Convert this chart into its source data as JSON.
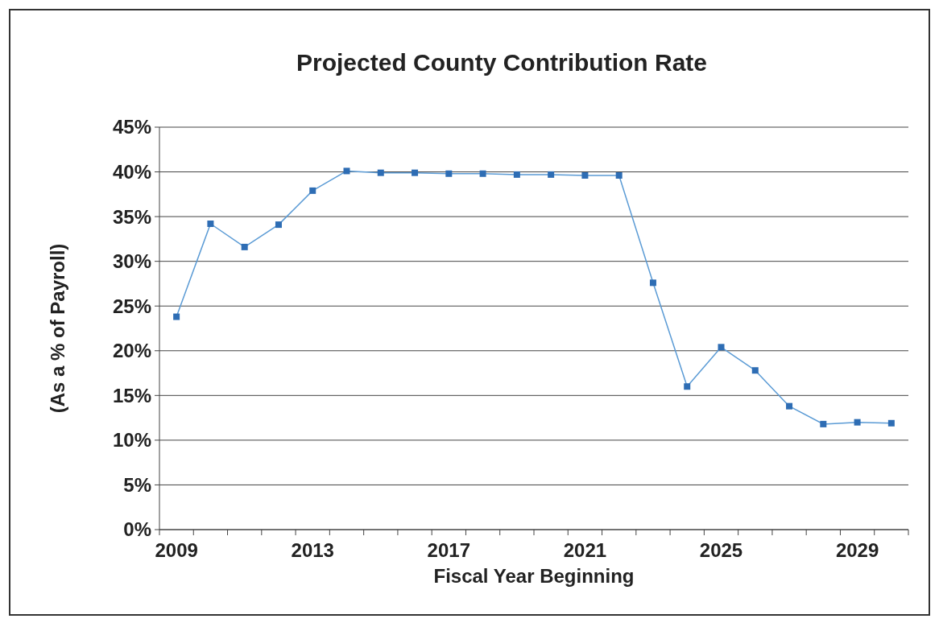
{
  "chart_data": {
    "type": "line",
    "title": "Projected County Contribution Rate",
    "xlabel": "Fiscal Year Beginning",
    "ylabel": "(As a % of Payroll)",
    "categories": [
      "2009",
      null,
      null,
      null,
      "2013",
      null,
      null,
      null,
      "2017",
      null,
      null,
      null,
      "2021",
      null,
      null,
      null,
      "2025",
      null,
      null,
      null,
      "2029",
      null
    ],
    "series": [
      {
        "color": "#2e6db4",
        "values": [
          23.8,
          34.2,
          31.6,
          34.1,
          37.9,
          40.1,
          39.9,
          39.9,
          39.8,
          39.8,
          39.7,
          39.7,
          39.6,
          39.6,
          27.6,
          16,
          20.4,
          17.8,
          13.8,
          11.8,
          12,
          11.9
        ]
      }
    ],
    "ylim": [
      0,
      45
    ],
    "yticks": [
      {
        "value": 0,
        "label": "0%"
      },
      {
        "value": 5,
        "label": "5%"
      },
      {
        "value": 10,
        "label": "10%"
      },
      {
        "value": 15,
        "label": "15%"
      },
      {
        "value": 20,
        "label": "20%"
      },
      {
        "value": 25,
        "label": "25%"
      },
      {
        "value": 30,
        "label": "30%"
      },
      {
        "value": 35,
        "label": "35%"
      },
      {
        "value": 40,
        "label": "40%"
      },
      {
        "value": 45,
        "label": "45%"
      }
    ],
    "grid": "y",
    "marker": "square",
    "line_style": "solid"
  }
}
